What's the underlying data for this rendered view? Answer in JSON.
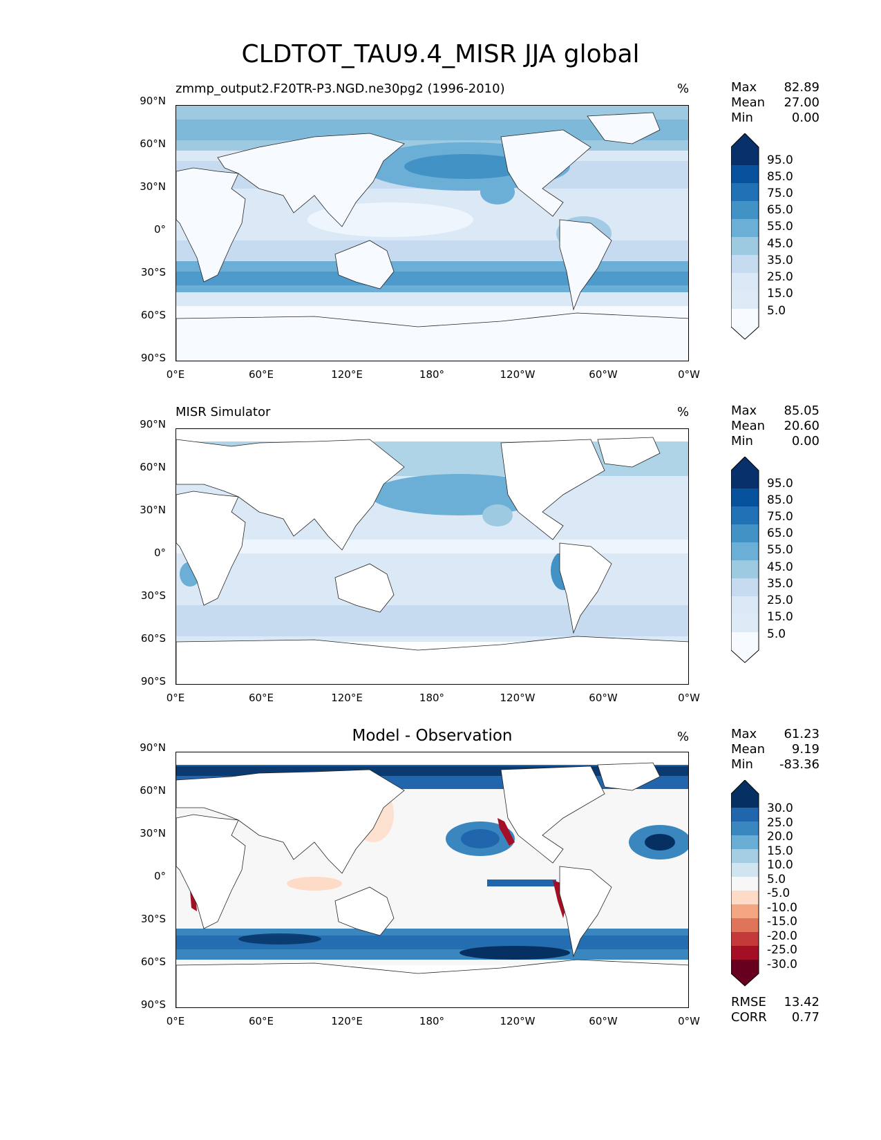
{
  "title": "CLDTOT_TAU9.4_MISR JJA global",
  "axes": {
    "lat_ticks": [
      "90°N",
      "60°N",
      "30°N",
      "0°",
      "30°S",
      "60°S",
      "90°S"
    ],
    "lon_ticks": [
      "0°E",
      "60°E",
      "120°E",
      "180°",
      "120°W",
      "60°W",
      "0°W"
    ]
  },
  "panels": [
    {
      "title": "zmmp_output2.F20TR-P3.NGD.ne30pg2 (1996-2010)",
      "unit": "%",
      "stats": [
        {
          "label": "Max",
          "value": "82.89"
        },
        {
          "label": "Mean",
          "value": "27.00"
        },
        {
          "label": "Min",
          "value": "0.00"
        }
      ],
      "colorbar_labels": [
        "95.0",
        "85.0",
        "75.0",
        "65.0",
        "55.0",
        "45.0",
        "35.0",
        "25.0",
        "15.0",
        "5.0"
      ],
      "colorbar_colors": [
        "#08306b",
        "#08519c",
        "#2171b5",
        "#4292c6",
        "#6baed6",
        "#9ecae1",
        "#c6dbef",
        "#dbe9f6",
        "#deebf7",
        "#f7fbff"
      ]
    },
    {
      "title": "MISR Simulator",
      "unit": "%",
      "stats": [
        {
          "label": "Max",
          "value": "85.05"
        },
        {
          "label": "Mean",
          "value": "20.60"
        },
        {
          "label": "Min",
          "value": "0.00"
        }
      ],
      "colorbar_labels": [
        "95.0",
        "85.0",
        "75.0",
        "65.0",
        "55.0",
        "45.0",
        "35.0",
        "25.0",
        "15.0",
        "5.0"
      ],
      "colorbar_colors": [
        "#08306b",
        "#08519c",
        "#2171b5",
        "#4292c6",
        "#6baed6",
        "#9ecae1",
        "#c6dbef",
        "#dbe9f6",
        "#deebf7",
        "#f7fbff"
      ]
    },
    {
      "title": "Model - Observation",
      "unit": "%",
      "stats": [
        {
          "label": "Max",
          "value": "61.23"
        },
        {
          "label": "Mean",
          "value": "9.19"
        },
        {
          "label": "Min",
          "value": "-83.36"
        }
      ],
      "colorbar_labels": [
        "30.0",
        "25.0",
        "20.0",
        "15.0",
        "10.0",
        "5.0",
        "-5.0",
        "-10.0",
        "-15.0",
        "-20.0",
        "-25.0",
        "-30.0"
      ],
      "colorbar_colors": [
        "#053061",
        "#2166ac",
        "#3a87c0",
        "#6aaed6",
        "#a6cee3",
        "#d1e5f0",
        "#f7f7f7",
        "#fddbc7",
        "#f4a582",
        "#e0745a",
        "#c43a3a",
        "#a50f25",
        "#67001f"
      ],
      "error_stats": [
        {
          "label": "RMSE",
          "value": "13.42"
        },
        {
          "label": "CORR",
          "value": "0.77"
        }
      ]
    }
  ]
}
